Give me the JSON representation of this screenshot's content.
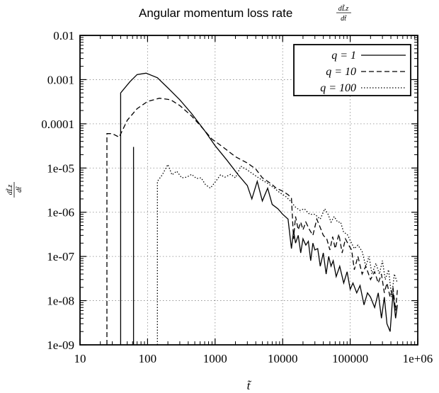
{
  "chart_data": {
    "type": "line",
    "title": "Angular momentum loss rate",
    "title_fraction": {
      "numerator": "dL̃z",
      "denominator": "dt̃"
    },
    "xlabel": "t̃",
    "ylabel": {
      "numerator": "dL̃z",
      "denominator": "dt̃"
    },
    "x_scale": "log",
    "y_scale": "log",
    "xlim": [
      10,
      1000000
    ],
    "ylim": [
      1e-09,
      0.01
    ],
    "grid": true,
    "legend_position": "top-right",
    "x_ticks": [
      "10",
      "100",
      "1000",
      "10000",
      "100000",
      "1e+06"
    ],
    "y_ticks": [
      "0.01",
      "0.001",
      "0.0001",
      "1e-05",
      "1e-06",
      "1e-07",
      "1e-08",
      "1e-09"
    ],
    "series": [
      {
        "name": "q = 1",
        "style": "solid",
        "x": [
          40,
          40,
          55,
          70,
          95,
          140,
          200,
          300,
          450,
          700,
          1000,
          1500,
          2200,
          3000,
          3500,
          4200,
          5000,
          6000,
          7000,
          8500,
          10000,
          12000,
          13500,
          14500,
          15500,
          17000,
          18500,
          20000,
          22000,
          24000,
          26000,
          28000,
          30000,
          33000,
          36000,
          40000,
          44000,
          48000,
          52000,
          56000,
          62000,
          70000,
          80000,
          90000,
          100000,
          110000,
          125000,
          140000,
          160000,
          180000,
          200000,
          230000,
          260000,
          290000,
          320000,
          350000,
          390000,
          430000,
          470000,
          500000
        ],
        "y": [
          1e-09,
          0.0005,
          0.0009,
          0.0013,
          0.0014,
          0.0011,
          0.00065,
          0.00035,
          0.00017,
          7e-05,
          3.2e-05,
          1.5e-05,
          7e-06,
          4e-06,
          2e-06,
          5e-06,
          1.8e-06,
          3.5e-06,
          1.5e-06,
          1.2e-06,
          9e-07,
          7e-07,
          1.5e-07,
          3.8e-07,
          2e-07,
          3e-07,
          1.2e-07,
          2.5e-07,
          1.8e-07,
          2.2e-07,
          8e-08,
          2e-07,
          1.4e-07,
          1.5e-07,
          6e-08,
          1.2e-07,
          4e-08,
          1e-07,
          6e-08,
          8e-08,
          3.5e-08,
          6e-08,
          2.5e-08,
          4.5e-08,
          1.8e-08,
          2.5e-08,
          1.5e-08,
          2.2e-08,
          8e-09,
          1.5e-08,
          1.2e-08,
          7e-09,
          1.5e-08,
          4e-09,
          1.2e-08,
          3e-09,
          2e-09,
          1.5e-08,
          4e-09,
          8e-09
        ]
      },
      {
        "name": "q = 10",
        "style": "dashed",
        "x": [
          25,
          25,
          30,
          38,
          50,
          70,
          100,
          150,
          220,
          300,
          450,
          650,
          900,
          1300,
          2000,
          3000,
          4000,
          5000,
          6000,
          7000,
          8000,
          10000,
          12000,
          13500,
          14500,
          15500,
          17000,
          18500,
          20000,
          22000,
          25000,
          28000,
          32000,
          36000,
          40000,
          45000,
          50000,
          55000,
          60000,
          68000,
          76000,
          85000,
          95000,
          105000,
          115000,
          130000,
          150000,
          170000,
          200000,
          230000,
          260000,
          290000,
          320000,
          350000,
          390000,
          430000,
          470000,
          500000
        ],
        "y": [
          1e-09,
          6e-05,
          6e-05,
          5e-05,
          0.00012,
          0.00022,
          0.00032,
          0.00038,
          0.00035,
          0.00026,
          0.00015,
          8e-05,
          4.5e-05,
          3e-05,
          1.8e-05,
          1.3e-05,
          9.5e-06,
          6e-06,
          5e-06,
          4.2e-06,
          3.5e-06,
          3e-06,
          2.5e-06,
          2.1e-06,
          2.5e-07,
          8e-07,
          4e-07,
          6e-07,
          4e-07,
          6e-07,
          4e-07,
          3e-07,
          7e-07,
          4.5e-07,
          3e-07,
          2.5e-07,
          1.4e-07,
          2.8e-07,
          1.5e-07,
          3.2e-07,
          1.2e-07,
          2.5e-07,
          1.8e-07,
          1.4e-07,
          5e-08,
          1e-07,
          4e-08,
          6e-08,
          3e-08,
          4.5e-08,
          2.5e-08,
          4e-08,
          1.5e-08,
          2.5e-08,
          1.2e-08,
          2e-08,
          6e-09,
          1.8e-08
        ]
      },
      {
        "name": "q = 100",
        "style": "dotted",
        "x": [
          140,
          140,
          165,
          200,
          230,
          270,
          320,
          380,
          450,
          530,
          620,
          720,
          850,
          1000,
          1200,
          1400,
          1700,
          2000,
          2400,
          3000,
          3800,
          4800,
          6000,
          7500,
          9000,
          11000,
          13000,
          15500,
          18000,
          21000,
          25000,
          30000,
          36000,
          42000,
          47000,
          52000,
          58000,
          65000,
          72000,
          80000,
          90000,
          100000,
          115000,
          130000,
          150000,
          170000,
          190000,
          210000,
          240000,
          270000,
          300000,
          330000,
          370000,
          410000,
          450000,
          500000
        ],
        "y": [
          1e-09,
          5e-06,
          7e-06,
          1.2e-05,
          7e-06,
          8.5e-06,
          6e-06,
          6.2e-06,
          7.2e-06,
          5.8e-06,
          6e-06,
          4.2e-06,
          3.5e-06,
          4.8e-06,
          7e-06,
          6.2e-06,
          7.2e-06,
          6e-06,
          1.1e-05,
          9e-06,
          7e-06,
          5.5e-06,
          4.5e-06,
          3.5e-06,
          2.8e-06,
          2.3e-06,
          1.8e-06,
          1.3e-06,
          1.1e-06,
          1.2e-06,
          9e-07,
          9e-07,
          7e-07,
          1.2e-06,
          9e-07,
          6e-07,
          8e-07,
          6e-07,
          6e-07,
          3.5e-07,
          3.2e-07,
          2.3e-07,
          1.5e-07,
          1.8e-07,
          1.3e-07,
          6e-08,
          1e-07,
          4e-08,
          7e-08,
          4e-08,
          8e-08,
          3e-08,
          5e-08,
          1.2e-08,
          4e-08,
          2.5e-08
        ]
      }
    ],
    "spikes": [
      {
        "series": "q = 1",
        "x": 62,
        "y_top": 3e-05
      }
    ]
  }
}
